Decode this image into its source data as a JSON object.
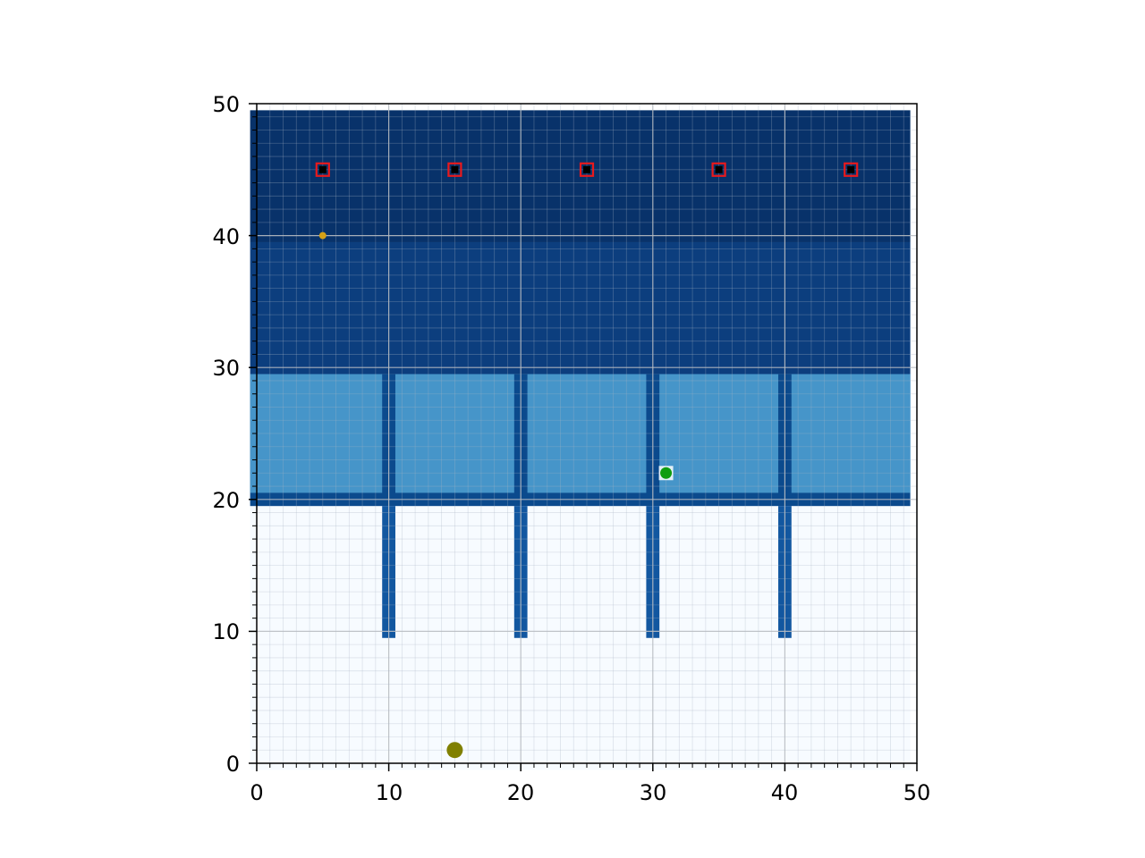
{
  "chart_data": {
    "type": "heatmap",
    "title": "",
    "xlabel": "",
    "ylabel": "",
    "xlim": [
      0,
      50
    ],
    "ylim": [
      0,
      50
    ],
    "x_ticks": [
      0,
      10,
      20,
      30,
      40,
      50
    ],
    "y_ticks": [
      0,
      10,
      20,
      30,
      40,
      50
    ],
    "x_tick_labels": [
      "0",
      "10",
      "20",
      "30",
      "40",
      "50"
    ],
    "y_tick_labels": [
      "0",
      "10",
      "20",
      "30",
      "40",
      "50"
    ],
    "minor_tick_step": 1,
    "grid": true,
    "colors": {
      "open_floor": "#f7fbff",
      "corridor": "#0b4a8d",
      "top_zone": "#08326a",
      "upper_zone": "#0c3e7e",
      "walls": "#1257a0",
      "room": "#4695c9",
      "target_fill": "#000000",
      "target_edge": "#e8191c",
      "agent_start": "#808000",
      "agent_current": "#0f9d10",
      "waypoint": "#d4a017"
    },
    "regions": [
      {
        "name": "top-zone",
        "x": [
          -0.5,
          49.5
        ],
        "y": [
          39.5,
          49.5
        ],
        "color": "top_zone"
      },
      {
        "name": "upper-zone",
        "x": [
          -0.5,
          49.5
        ],
        "y": [
          29.5,
          39.5
        ],
        "color": "upper_zone"
      },
      {
        "name": "corridor",
        "x": [
          -0.5,
          49.5
        ],
        "y": [
          19.5,
          29.5
        ],
        "color": "corridor"
      },
      {
        "name": "divider-1",
        "x": [
          9.5,
          10.5
        ],
        "y": [
          9.5,
          19.5
        ],
        "color": "walls"
      },
      {
        "name": "divider-2",
        "x": [
          19.5,
          20.5
        ],
        "y": [
          9.5,
          19.5
        ],
        "color": "walls"
      },
      {
        "name": "divider-3",
        "x": [
          29.5,
          30.5
        ],
        "y": [
          9.5,
          19.5
        ],
        "color": "walls"
      },
      {
        "name": "divider-4",
        "x": [
          39.5,
          40.5
        ],
        "y": [
          9.5,
          19.5
        ],
        "color": "walls"
      },
      {
        "name": "room-1",
        "x": [
          -0.5,
          9.5
        ],
        "y": [
          20.5,
          29.5
        ],
        "color": "room"
      },
      {
        "name": "room-2",
        "x": [
          10.5,
          19.5
        ],
        "y": [
          20.5,
          29.5
        ],
        "color": "room"
      },
      {
        "name": "room-3",
        "x": [
          20.5,
          29.5
        ],
        "y": [
          20.5,
          29.5
        ],
        "color": "room"
      },
      {
        "name": "room-4",
        "x": [
          30.5,
          39.5
        ],
        "y": [
          20.5,
          29.5
        ],
        "color": "room"
      },
      {
        "name": "room-5",
        "x": [
          40.5,
          49.5
        ],
        "y": [
          20.5,
          29.5
        ],
        "color": "room"
      }
    ],
    "targets": [
      {
        "x": 5,
        "y": 45
      },
      {
        "x": 15,
        "y": 45
      },
      {
        "x": 25,
        "y": 45
      },
      {
        "x": 35,
        "y": 45
      },
      {
        "x": 45,
        "y": 45
      }
    ],
    "points": [
      {
        "name": "start-point",
        "x": 15,
        "y": 1,
        "color": "agent_start",
        "size": "large"
      },
      {
        "name": "agent-point",
        "x": 31,
        "y": 22,
        "color": "agent_current",
        "size": "medium"
      },
      {
        "name": "waypoint-point",
        "x": 5,
        "y": 40,
        "color": "waypoint",
        "size": "small"
      }
    ]
  }
}
